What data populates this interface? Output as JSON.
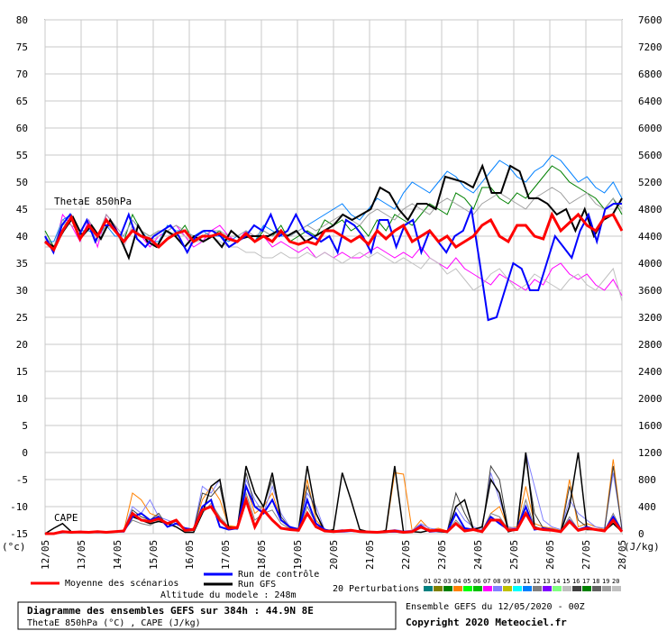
{
  "chart_data": {
    "type": "line",
    "x_dates": [
      "12/05",
      "13/05",
      "14/05",
      "15/05",
      "16/05",
      "17/05",
      "18/05",
      "19/05",
      "20/05",
      "21/05",
      "22/05",
      "23/05",
      "24/05",
      "25/05",
      "26/05",
      "27/05",
      "28/05"
    ],
    "y_left_range": [
      -15,
      80
    ],
    "y_left_ticks": [
      -15,
      -10,
      -5,
      0,
      5,
      10,
      15,
      20,
      25,
      30,
      35,
      40,
      45,
      50,
      55,
      60,
      65,
      70,
      75,
      80
    ],
    "y_left_unit": "(°c)",
    "y_right_range": [
      0,
      7600
    ],
    "y_right_ticks": [
      0,
      400,
      800,
      1200,
      1600,
      2000,
      2400,
      2800,
      3200,
      3600,
      4000,
      4400,
      4800,
      5200,
      5600,
      6000,
      6400,
      6800,
      7200,
      7600
    ],
    "y_right_unit": "(J/kg)",
    "grid": true,
    "labels": {
      "thetae": "ThetaE 850hPa",
      "cape": "CAPE"
    },
    "thetae": {
      "mean": [
        39,
        37.5,
        41,
        43.5,
        39.5,
        42,
        40,
        43,
        41,
        39,
        41,
        40,
        39.5,
        38,
        39.5,
        40.5,
        41,
        39,
        40,
        40,
        40.5,
        39.5,
        39,
        40.5,
        39,
        40,
        39,
        41,
        39,
        38.5,
        39,
        38.5,
        41,
        41,
        40,
        39,
        40,
        38.5,
        41,
        39.5,
        41,
        42,
        39,
        40,
        41,
        39,
        40,
        38,
        39,
        40,
        42,
        43,
        40,
        39,
        42,
        42,
        40,
        39.5,
        44,
        41,
        42.5,
        44,
        42,
        41,
        43.5,
        44,
        41
      ],
      "control": [
        40,
        37,
        42,
        44,
        40,
        43,
        39,
        42,
        42,
        40,
        44,
        39.5,
        38,
        40,
        41,
        42,
        40,
        37,
        40,
        41,
        41,
        40,
        38,
        39,
        40,
        42,
        41,
        44,
        40,
        41,
        44,
        41,
        40,
        39,
        40,
        37,
        43,
        42,
        40,
        37,
        43,
        43,
        38,
        42,
        43,
        37,
        41,
        39,
        37,
        40,
        41,
        45,
        35,
        24.5,
        25,
        30,
        35,
        34,
        30,
        30,
        35,
        40,
        38,
        36,
        41,
        44,
        39,
        45,
        46,
        46
      ],
      "gfs": [
        39,
        38,
        41,
        43.5,
        40,
        42,
        39.5,
        43,
        40,
        36,
        42,
        39,
        38,
        41,
        40,
        38,
        40,
        39,
        40,
        38,
        41,
        39.5,
        40,
        40,
        40,
        41,
        40,
        41,
        39,
        40,
        41,
        42,
        44,
        43,
        44,
        45,
        49,
        48,
        45,
        43,
        46,
        46,
        45,
        51,
        50.5,
        50,
        49,
        53,
        48,
        48,
        53,
        52,
        47,
        47,
        46,
        44,
        45,
        41,
        45,
        40,
        43,
        44,
        47
      ],
      "pert": [
        [
          41,
          38,
          42,
          43,
          40,
          42,
          40,
          43,
          41,
          39,
          44,
          41,
          40,
          41,
          41,
          40,
          42,
          39,
          40,
          40,
          41,
          38,
          39,
          40,
          39,
          41,
          40,
          42,
          39,
          40,
          41,
          40,
          43,
          42,
          43,
          41,
          42,
          40,
          43,
          41,
          44,
          43,
          42,
          44,
          46,
          45,
          44,
          48,
          47,
          45,
          49,
          49,
          47,
          46,
          48,
          47,
          49,
          51,
          53,
          52,
          50,
          49,
          48,
          47,
          45,
          47,
          44
        ],
        [
          40,
          37,
          44,
          42,
          39,
          43,
          38,
          44,
          42,
          38,
          42,
          40,
          38,
          40,
          41,
          42,
          40,
          38,
          39,
          41,
          42,
          40,
          39,
          41,
          40,
          40,
          38,
          39,
          38,
          37,
          38,
          36,
          37,
          36,
          37,
          36,
          36,
          37,
          38,
          37,
          36,
          37,
          36,
          38,
          36,
          35,
          34,
          36,
          34,
          33,
          32,
          31,
          33,
          32,
          31,
          30,
          32,
          31,
          34,
          35,
          33,
          32,
          33,
          31,
          30,
          32,
          29
        ],
        [
          39,
          39,
          43,
          44,
          41,
          41,
          40,
          42,
          40,
          40,
          43,
          41,
          39,
          39,
          42,
          41,
          41,
          40,
          41,
          40,
          40,
          39,
          40,
          41,
          39,
          42,
          41,
          40,
          40,
          41,
          42,
          43,
          44,
          45,
          46,
          44,
          43,
          45,
          47,
          46,
          45,
          48,
          50,
          49,
          48,
          50,
          52,
          51,
          49,
          48,
          50,
          52,
          54,
          53,
          51,
          50,
          52,
          53,
          55,
          54,
          52,
          50,
          51,
          49,
          48,
          50,
          47
        ],
        [
          38,
          38,
          42,
          43,
          40,
          42,
          39,
          42,
          41,
          38,
          42,
          40,
          39,
          40,
          40,
          41,
          40,
          39,
          39,
          40,
          39,
          38,
          38,
          37,
          37,
          36,
          36,
          37,
          36,
          36,
          37,
          36,
          37,
          36,
          35,
          36,
          37,
          36,
          37,
          36,
          35,
          36,
          35,
          34,
          36,
          35,
          33,
          34,
          32,
          30,
          31,
          33,
          34,
          32,
          30,
          31,
          33,
          32,
          31,
          30,
          32,
          33,
          31,
          30,
          32,
          34,
          28
        ],
        [
          40,
          38,
          43,
          42,
          41,
          43,
          40,
          44,
          42,
          40,
          43,
          41,
          40,
          41,
          41,
          42,
          41,
          40,
          40,
          41,
          41,
          40,
          40,
          41,
          40,
          41,
          40,
          41,
          40,
          41,
          42,
          41,
          42,
          43,
          44,
          43,
          42,
          44,
          45,
          44,
          43,
          45,
          46,
          45,
          44,
          46,
          47,
          46,
          45,
          44,
          46,
          47,
          48,
          47,
          46,
          45,
          47,
          48,
          49,
          48,
          46,
          47,
          48,
          46,
          45,
          47,
          45
        ]
      ]
    },
    "cape": {
      "mean": [
        0,
        0,
        30,
        20,
        25,
        20,
        30,
        20,
        30,
        40,
        300,
        200,
        180,
        220,
        150,
        200,
        50,
        60,
        350,
        400,
        200,
        80,
        90,
        500,
        100,
        350,
        200,
        80,
        60,
        50,
        300,
        100,
        40,
        30,
        40,
        50,
        30,
        25,
        20,
        30,
        40,
        20,
        30,
        100,
        40,
        50,
        30,
        150,
        40,
        60,
        30,
        200,
        200,
        50,
        60,
        300,
        80,
        60,
        50,
        30,
        180,
        50,
        80,
        60,
        40,
        200,
        30
      ],
      "control": [
        0,
        0,
        20,
        20,
        30,
        20,
        20,
        20,
        30,
        30,
        250,
        300,
        200,
        250,
        100,
        150,
        80,
        60,
        400,
        500,
        100,
        60,
        80,
        700,
        400,
        300,
        500,
        200,
        100,
        60,
        500,
        150,
        60,
        30,
        30,
        40,
        30,
        20,
        20,
        25,
        30,
        20,
        30,
        120,
        30,
        40,
        30,
        300,
        80,
        60,
        30,
        250,
        150,
        60,
        70,
        400,
        60,
        80,
        60,
        30,
        200,
        60,
        100,
        60,
        40,
        250,
        40
      ],
      "gfs": [
        0,
        80,
        150,
        30,
        20,
        20,
        20,
        20,
        30,
        40,
        250,
        200,
        150,
        180,
        150,
        100,
        20,
        20,
        300,
        700,
        800,
        100,
        80,
        1000,
        600,
        400,
        900,
        200,
        100,
        60,
        1000,
        300,
        30,
        60,
        900,
        500,
        60,
        30,
        20,
        50,
        1000,
        30,
        30,
        20,
        50,
        30,
        20,
        400,
        500,
        60,
        100,
        800,
        600,
        30,
        60,
        1200,
        100,
        60,
        50,
        30,
        400,
        1200,
        60,
        60,
        40,
        150,
        30
      ],
      "pert": [
        [
          0,
          0,
          30,
          20,
          30,
          20,
          30,
          20,
          40,
          40,
          600,
          500,
          300,
          250,
          150,
          200,
          60,
          80,
          500,
          700,
          500,
          120,
          100,
          700,
          300,
          400,
          600,
          200,
          80,
          60,
          800,
          200,
          60,
          50,
          40,
          60,
          40,
          30,
          30,
          40,
          900,
          880,
          40,
          200,
          60,
          80,
          40,
          300,
          60,
          80,
          40,
          300,
          400,
          80,
          100,
          700,
          150,
          100,
          80,
          50,
          800,
          100,
          150,
          100,
          60,
          1100,
          60
        ],
        [
          0,
          0,
          20,
          30,
          20,
          30,
          20,
          30,
          30,
          50,
          400,
          300,
          500,
          250,
          200,
          150,
          80,
          60,
          700,
          600,
          800,
          100,
          60,
          800,
          500,
          300,
          700,
          300,
          100,
          80,
          600,
          400,
          50,
          40,
          60,
          40,
          30,
          20,
          30,
          40,
          60,
          40,
          50,
          150,
          80,
          60,
          30,
          400,
          200,
          100,
          60,
          900,
          500,
          100,
          80,
          1200,
          700,
          200,
          100,
          60,
          500,
          300,
          200,
          100,
          80,
          900,
          100
        ],
        [
          0,
          0,
          30,
          20,
          25,
          20,
          30,
          20,
          30,
          40,
          200,
          150,
          120,
          200,
          150,
          180,
          50,
          60,
          300,
          450,
          250,
          100,
          90,
          600,
          200,
          300,
          350,
          150,
          70,
          50,
          400,
          150,
          40,
          30,
          40,
          50,
          30,
          25,
          20,
          30,
          50,
          30,
          30,
          80,
          40,
          50,
          30,
          200,
          60,
          60,
          30,
          300,
          250,
          60,
          60,
          500,
          100,
          60,
          50,
          30,
          250,
          60,
          80,
          60,
          40,
          300,
          40
        ],
        [
          0,
          0,
          20,
          20,
          30,
          20,
          20,
          20,
          30,
          30,
          350,
          250,
          200,
          300,
          100,
          200,
          60,
          60,
          600,
          550,
          700,
          80,
          70,
          900,
          400,
          400,
          800,
          250,
          90,
          60,
          700,
          300,
          50,
          30,
          40,
          40,
          30,
          20,
          20,
          25,
          30,
          20,
          30,
          100,
          40,
          40,
          30,
          600,
          300,
          60,
          40,
          1000,
          800,
          60,
          70,
          1100,
          300,
          80,
          60,
          30,
          700,
          200,
          100,
          60,
          40,
          1000,
          60
        ]
      ]
    },
    "legend": {
      "mean_label": "Moyenne des scénarios",
      "control_label": "Run de contrôle",
      "gfs_label": "Run GFS",
      "pert_label": "20 Perturbations",
      "pert_numbers": [
        "01",
        "02",
        "03",
        "04",
        "05",
        "06",
        "07",
        "08",
        "09",
        "10",
        "11",
        "12",
        "13",
        "14",
        "15",
        "16",
        "17",
        "18",
        "19",
        "20"
      ],
      "pert_colors": [
        "#008080",
        "#808000",
        "#008000",
        "#ff8000",
        "#00ff00",
        "#00c000",
        "#ff00ff",
        "#8080ff",
        "#c0c000",
        "#00ffff",
        "#0080ff",
        "#808080",
        "#8000ff",
        "#80ff80",
        "#c0c0c0",
        "#404040",
        "#008000",
        "#606060",
        "#a0a0a0",
        "#c0c0c0"
      ],
      "mean_color": "#ff0000",
      "control_color": "#0000ff",
      "gfs_color": "#000000"
    },
    "altitude": "Altitude du modele : 248m"
  },
  "footer": {
    "title": "Diagramme des ensembles GEFS sur 384h : 44.9N 8E",
    "subtitle": "ThetaE 850hPa (°C) , CAPE (J/kg)",
    "run_info": "Ensemble GEFS du 12/05/2020 - 00Z",
    "copyright": "Copyright 2020 Meteociel.fr"
  }
}
